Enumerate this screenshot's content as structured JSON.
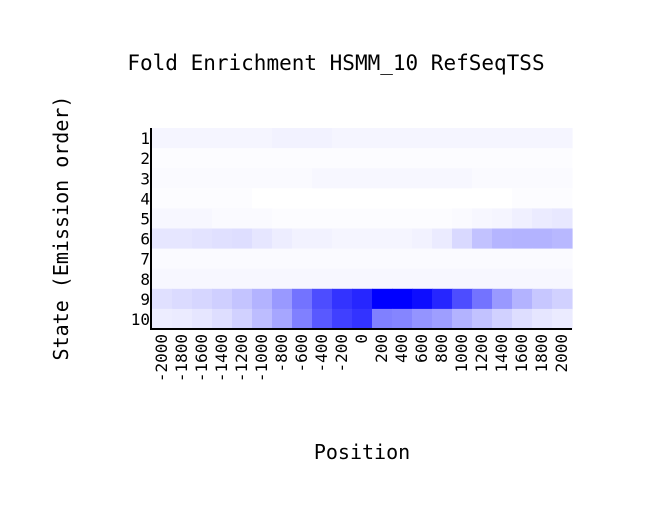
{
  "chart_data": {
    "type": "heatmap",
    "title": "Fold Enrichment HSMM_10 RefSeqTSS",
    "xlabel": "Position",
    "ylabel": "State (Emission order)",
    "x_categories": [
      "-2000",
      "-1800",
      "-1600",
      "-1400",
      "-1200",
      "-1000",
      "-800",
      "-600",
      "-400",
      "-200",
      "0",
      "200",
      "400",
      "600",
      "800",
      "1000",
      "1200",
      "1400",
      "1600",
      "1800",
      "2000"
    ],
    "y_categories": [
      "1",
      "2",
      "3",
      "4",
      "5",
      "6",
      "7",
      "8",
      "9",
      "10"
    ],
    "colorscale": {
      "low": "#ffffff",
      "high": "#0000ff"
    },
    "value_range": [
      0,
      1
    ],
    "values": [
      [
        0.04,
        0.04,
        0.04,
        0.04,
        0.04,
        0.04,
        0.05,
        0.05,
        0.05,
        0.04,
        0.04,
        0.04,
        0.04,
        0.04,
        0.04,
        0.04,
        0.04,
        0.04,
        0.04,
        0.04,
        0.04
      ],
      [
        0.01,
        0.01,
        0.01,
        0.01,
        0.01,
        0.01,
        0.01,
        0.01,
        0.01,
        0.01,
        0.01,
        0.01,
        0.01,
        0.01,
        0.01,
        0.01,
        0.01,
        0.01,
        0.01,
        0.01,
        0.01
      ],
      [
        0.02,
        0.02,
        0.02,
        0.02,
        0.02,
        0.02,
        0.02,
        0.02,
        0.03,
        0.03,
        0.03,
        0.03,
        0.03,
        0.03,
        0.03,
        0.03,
        0.02,
        0.02,
        0.02,
        0.02,
        0.02
      ],
      [
        0.01,
        0.01,
        0.01,
        0.01,
        0.01,
        0.0,
        0.0,
        0.0,
        0.0,
        0.0,
        0.0,
        0.0,
        0.0,
        0.0,
        0.0,
        0.0,
        0.0,
        0.0,
        0.01,
        0.01,
        0.01
      ],
      [
        0.03,
        0.03,
        0.03,
        0.02,
        0.02,
        0.02,
        0.01,
        0.01,
        0.01,
        0.01,
        0.01,
        0.01,
        0.01,
        0.01,
        0.01,
        0.02,
        0.03,
        0.04,
        0.06,
        0.08,
        0.09
      ],
      [
        0.1,
        0.1,
        0.11,
        0.12,
        0.13,
        0.1,
        0.07,
        0.05,
        0.05,
        0.04,
        0.04,
        0.04,
        0.04,
        0.05,
        0.08,
        0.15,
        0.24,
        0.29,
        0.3,
        0.3,
        0.28
      ],
      [
        0.02,
        0.02,
        0.02,
        0.02,
        0.02,
        0.02,
        0.02,
        0.02,
        0.02,
        0.02,
        0.02,
        0.02,
        0.02,
        0.02,
        0.02,
        0.02,
        0.02,
        0.02,
        0.02,
        0.02,
        0.02
      ],
      [
        0.03,
        0.03,
        0.03,
        0.03,
        0.03,
        0.03,
        0.03,
        0.03,
        0.03,
        0.03,
        0.03,
        0.03,
        0.03,
        0.03,
        0.03,
        0.03,
        0.03,
        0.03,
        0.03,
        0.03,
        0.03
      ],
      [
        0.12,
        0.14,
        0.16,
        0.19,
        0.23,
        0.3,
        0.4,
        0.55,
        0.7,
        0.8,
        0.85,
        1.0,
        1.0,
        0.95,
        0.85,
        0.7,
        0.55,
        0.4,
        0.3,
        0.22,
        0.18
      ],
      [
        0.07,
        0.08,
        0.1,
        0.13,
        0.18,
        0.26,
        0.35,
        0.5,
        0.65,
        0.75,
        0.8,
        0.5,
        0.48,
        0.42,
        0.38,
        0.3,
        0.24,
        0.18,
        0.13,
        0.1,
        0.08
      ]
    ]
  }
}
